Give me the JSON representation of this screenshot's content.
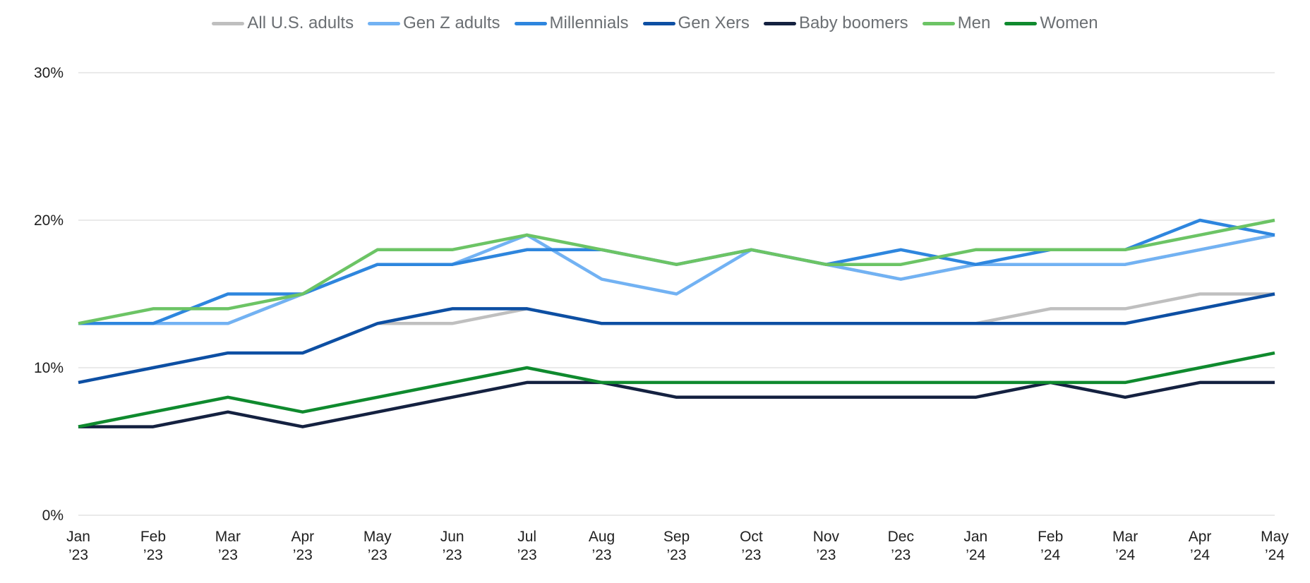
{
  "chart_data": {
    "type": "line",
    "title": "",
    "xlabel": "",
    "ylabel": "",
    "ylim": [
      0,
      30
    ],
    "yticks": [
      0,
      10,
      20,
      30
    ],
    "ytick_labels": [
      "0%",
      "10%",
      "20%",
      "30%"
    ],
    "grid": "horizontal",
    "legend_position": "top-center",
    "categories": [
      {
        "month": "Jan",
        "year": "’23"
      },
      {
        "month": "Feb",
        "year": "’23"
      },
      {
        "month": "Mar",
        "year": "’23"
      },
      {
        "month": "Apr",
        "year": "’23"
      },
      {
        "month": "May",
        "year": "’23"
      },
      {
        "month": "Jun",
        "year": "’23"
      },
      {
        "month": "Jul",
        "year": "’23"
      },
      {
        "month": "Aug",
        "year": "’23"
      },
      {
        "month": "Sep",
        "year": "’23"
      },
      {
        "month": "Oct",
        "year": "’23"
      },
      {
        "month": "Nov",
        "year": "’23"
      },
      {
        "month": "Dec",
        "year": "’23"
      },
      {
        "month": "Jan",
        "year": "’24"
      },
      {
        "month": "Feb",
        "year": "’24"
      },
      {
        "month": "Mar",
        "year": "’24"
      },
      {
        "month": "Apr",
        "year": "’24"
      },
      {
        "month": "May",
        "year": "’24"
      }
    ],
    "series": [
      {
        "name": "All U.S. adults",
        "color": "#bfbfbf",
        "values": [
          13,
          13,
          13,
          15,
          17,
          17,
          18,
          18,
          17,
          18,
          17,
          16,
          17,
          17,
          17,
          18,
          19
        ]
      },
      {
        "name": "Gen Z adults",
        "color": "#72b2f3",
        "values": [
          13,
          13,
          13,
          15,
          17,
          17,
          19,
          16,
          15,
          18,
          17,
          16,
          17,
          17,
          17,
          18,
          19
        ]
      },
      {
        "name": "Millennials",
        "color": "#2e86de",
        "values": [
          13,
          13,
          15,
          15,
          17,
          17,
          18,
          18,
          17,
          18,
          17,
          18,
          17,
          18,
          18,
          20,
          19
        ]
      },
      {
        "name": "Gen Xers",
        "color": "#0d4fa3",
        "values": [
          9,
          10,
          11,
          11,
          13,
          14,
          14,
          13,
          13,
          13,
          13,
          13,
          13,
          13,
          13,
          14,
          15
        ]
      },
      {
        "name": "Baby boomers",
        "color": "#142140",
        "values": [
          6,
          6,
          7,
          6,
          7,
          8,
          9,
          9,
          8,
          8,
          8,
          8,
          8,
          9,
          8,
          9,
          9
        ]
      },
      {
        "name": "Men",
        "color": "#6cc465",
        "values": [
          13,
          14,
          14,
          15,
          18,
          18,
          19,
          18,
          17,
          18,
          17,
          17,
          18,
          18,
          18,
          19,
          20
        ]
      },
      {
        "name": "Women",
        "color": "#0f8a2e",
        "values": [
          6,
          7,
          8,
          7,
          8,
          9,
          10,
          9,
          9,
          9,
          9,
          9,
          9,
          9,
          9,
          10,
          11
        ]
      }
    ],
    "extra_lines": [
      {
        "series": "All U.S. adults",
        "values": [
          null,
          null,
          null,
          null,
          13,
          13,
          14,
          13,
          13,
          13,
          13,
          13,
          13,
          14,
          14,
          15,
          15
        ]
      }
    ],
    "gridline_color": "#e3e3e3"
  }
}
